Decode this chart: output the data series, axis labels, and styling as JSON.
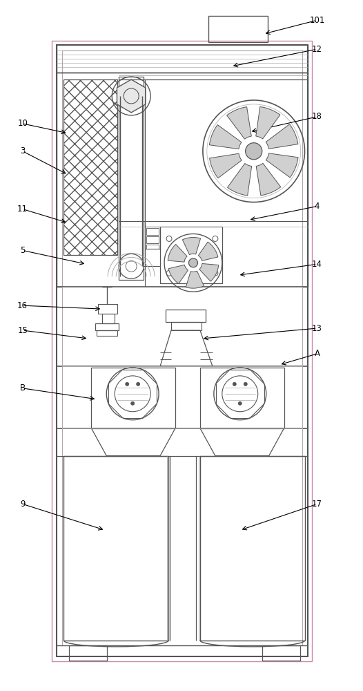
{
  "bg": "#ffffff",
  "lc": "#555555",
  "lc2": "#aaaaaa",
  "lcp": "#cc88aa",
  "fw": 5.26,
  "fh": 10.0,
  "labels": [
    [
      "101",
      460,
      28,
      382,
      48
    ],
    [
      "12",
      460,
      70,
      335,
      95
    ],
    [
      "18",
      460,
      168,
      362,
      190
    ],
    [
      "10",
      32,
      178,
      98,
      192
    ],
    [
      "3",
      32,
      218,
      98,
      252
    ],
    [
      "4",
      460,
      298,
      360,
      318
    ],
    [
      "11",
      32,
      302,
      98,
      322
    ],
    [
      "5",
      32,
      362,
      125,
      382
    ],
    [
      "14",
      460,
      382,
      345,
      398
    ],
    [
      "16",
      32,
      442,
      148,
      447
    ],
    [
      "15",
      32,
      478,
      128,
      490
    ],
    [
      "13",
      460,
      475,
      292,
      490
    ],
    [
      "A",
      460,
      512,
      405,
      528
    ],
    [
      "B",
      32,
      562,
      140,
      578
    ],
    [
      "9",
      32,
      730,
      152,
      768
    ],
    [
      "17",
      460,
      730,
      348,
      768
    ]
  ]
}
